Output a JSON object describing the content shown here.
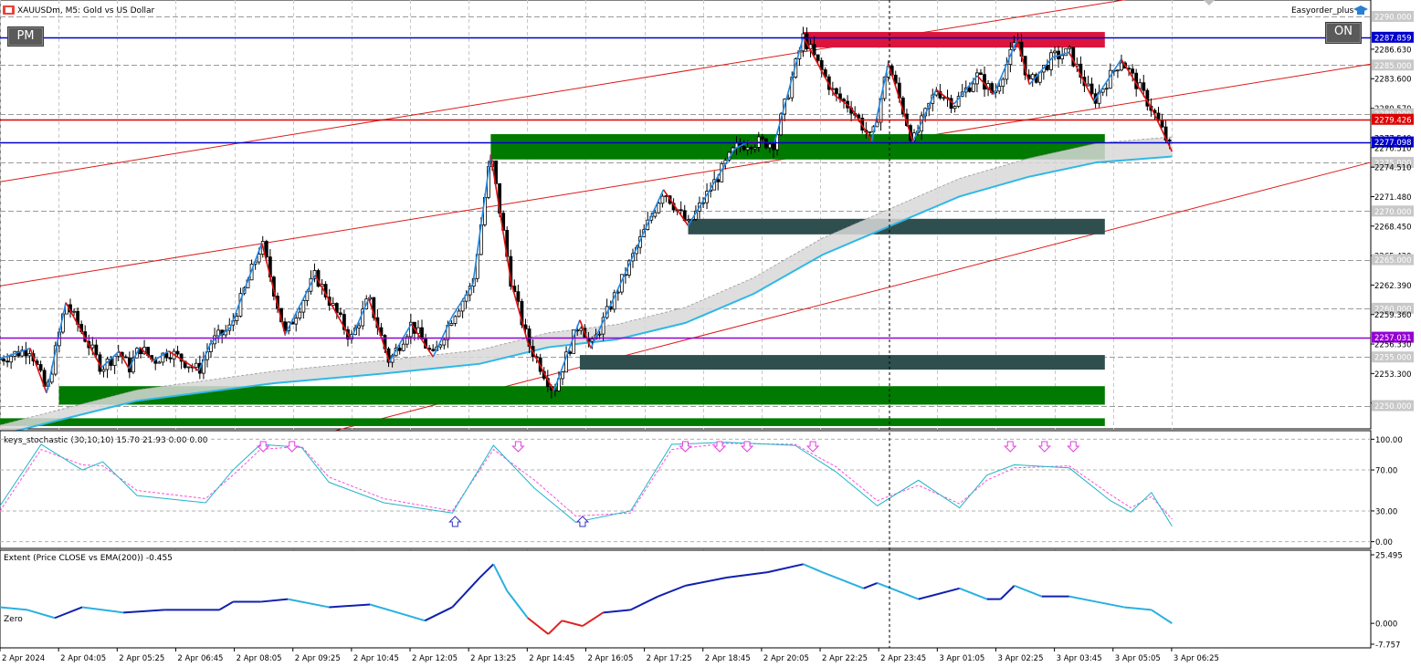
{
  "header": {
    "symbol": "XAUUSDm, M5:  Gold vs US Dollar",
    "expert": "Easyorder_plus"
  },
  "buttons": {
    "left": "PM",
    "right": "ON"
  },
  "colors": {
    "bull_leg": "#1e88e5",
    "bear_leg": "#e01010",
    "ema": "#2eb8e6",
    "zone_green": "#007a00",
    "zone_slate": "#2f4f4f",
    "zone_red": "#dc143c",
    "hline_blue": "#0000cc",
    "hline_red": "#dd0000",
    "hline_purple": "#9400d3"
  },
  "chart_data": [
    {
      "type": "candlestick",
      "title": "XAUUSDm, M5:  Gold vs US Dollar",
      "ylim": [
        2247.8,
        2291.5
      ],
      "price_labels": [
        "2290.000",
        "2287.859",
        "2286.630",
        "2285.000",
        "2283.600",
        "2280.570",
        "2280.000",
        "2279.426",
        "2277.540",
        "2277.098",
        "2276.510",
        "2275.000",
        "2274.510",
        "2271.480",
        "2270.000",
        "2268.450",
        "2265.420",
        "2265.000",
        "2262.390",
        "2260.000",
        "2259.360",
        "2257.031",
        "2256.330",
        "2255.000",
        "2253.300",
        "2250.270",
        "2250.000"
      ],
      "highlighted_levels": [
        {
          "value": 2287.859,
          "label": "2287.859",
          "color": "#0000cc"
        },
        {
          "value": 2279.426,
          "label": "2279.426",
          "color": "#dd0000"
        },
        {
          "value": 2277.098,
          "label": "2277.098",
          "color": "#0000cc"
        },
        {
          "value": 2257.031,
          "label": "2257.031",
          "color": "#9400d3"
        }
      ],
      "time_labels": [
        "2 Apr 2024",
        "2 Apr 04:05",
        "2 Apr 05:25",
        "2 Apr 06:45",
        "2 Apr 08:05",
        "2 Apr 09:25",
        "2 Apr 10:45",
        "2 Apr 12:05",
        "2 Apr 13:25",
        "2 Apr 14:45",
        "2 Apr 16:05",
        "2 Apr 17:25",
        "2 Apr 18:45",
        "2 Apr 20:05",
        "2 Apr 22:25",
        "2 Apr 23:45",
        "3 Apr 01:05",
        "3 Apr 02:25",
        "3 Apr 03:45",
        "3 Apr 05:05",
        "3 Apr 06:25"
      ],
      "zigzag": [
        [
          0.0,
          2254.8
        ],
        [
          2.2,
          2255.9
        ],
        [
          3.4,
          2251.3
        ],
        [
          4.8,
          2260.6
        ],
        [
          7.4,
          2253.9
        ],
        [
          8.7,
          2255.6
        ],
        [
          9.4,
          2253.8
        ],
        [
          10.2,
          2256.0
        ],
        [
          11.2,
          2254.6
        ],
        [
          12.3,
          2255.6
        ],
        [
          14.5,
          2253.6
        ],
        [
          15.4,
          2256.5
        ],
        [
          16.8,
          2258.0
        ],
        [
          19.1,
          2266.7
        ],
        [
          20.8,
          2257.3
        ],
        [
          23.0,
          2263.4
        ],
        [
          25.6,
          2256.8
        ],
        [
          26.9,
          2261.0
        ],
        [
          28.4,
          2254.5
        ],
        [
          30.0,
          2258.4
        ],
        [
          31.6,
          2255.0
        ],
        [
          33.0,
          2259.2
        ],
        [
          34.5,
          2262.5
        ],
        [
          35.8,
          2275.8
        ],
        [
          37.3,
          2262.6
        ],
        [
          38.5,
          2256.5
        ],
        [
          40.4,
          2251.5
        ],
        [
          42.3,
          2258.8
        ],
        [
          43.1,
          2255.9
        ],
        [
          48.4,
          2272.2
        ],
        [
          50.2,
          2268.5
        ],
        [
          53.6,
          2276.4
        ],
        [
          54.6,
          2277.1
        ],
        [
          56.5,
          2277.0
        ],
        [
          58.6,
          2287.9
        ],
        [
          60.9,
          2281.9
        ],
        [
          62.1,
          2280.6
        ],
        [
          63.6,
          2277.2
        ],
        [
          64.8,
          2285.2
        ],
        [
          66.6,
          2277.1
        ],
        [
          68.3,
          2282.5
        ],
        [
          69.6,
          2281.0
        ],
        [
          71.3,
          2283.9
        ],
        [
          72.5,
          2282.0
        ],
        [
          74.2,
          2287.6
        ],
        [
          75.1,
          2283.0
        ],
        [
          76.8,
          2285.8
        ],
        [
          78.0,
          2286.3
        ],
        [
          79.8,
          2281.3
        ],
        [
          81.8,
          2285.6
        ],
        [
          84.0,
          2280.6
        ],
        [
          85.5,
          2276.1
        ]
      ],
      "zones": [
        {
          "from": 35.8,
          "to": 80.6,
          "low": 2275.3,
          "high": 2277.9,
          "color": "green"
        },
        {
          "from": 58.6,
          "to": 80.6,
          "low": 2286.8,
          "high": 2288.4,
          "color": "red"
        },
        {
          "from": 50.2,
          "to": 80.6,
          "low": 2267.6,
          "high": 2269.2,
          "color": "slate"
        },
        {
          "from": 42.3,
          "to": 80.6,
          "low": 2253.7,
          "high": 2255.2,
          "color": "slate"
        },
        {
          "from": 4.3,
          "to": 80.6,
          "low": 2250.1,
          "high": 2252.0,
          "color": "green"
        },
        {
          "from": 0.0,
          "to": 80.6,
          "low": 2247.9,
          "high": 2248.7,
          "color": "green"
        }
      ],
      "ema_200": [
        [
          0,
          2247.0
        ],
        [
          10,
          2250.5
        ],
        [
          20,
          2252.3
        ],
        [
          28,
          2253.3
        ],
        [
          35,
          2254.3
        ],
        [
          40,
          2256.0
        ],
        [
          45,
          2256.8
        ],
        [
          50,
          2258.5
        ],
        [
          55,
          2261.5
        ],
        [
          60,
          2265.5
        ],
        [
          65,
          2268.5
        ],
        [
          70,
          2271.5
        ],
        [
          75,
          2273.5
        ],
        [
          80,
          2275.0
        ],
        [
          85.5,
          2275.6
        ]
      ],
      "channel": [
        {
          "name": "upper",
          "from": [
            0,
            2273.0
          ],
          "to": [
            100,
            2295.8
          ]
        },
        {
          "name": "middle",
          "from": [
            0,
            2262.3
          ],
          "to": [
            100,
            2285.1
          ]
        },
        {
          "name": "lower",
          "from": [
            0,
            2238.5
          ],
          "to": [
            100,
            2275.0
          ]
        }
      ]
    },
    {
      "type": "line",
      "title": "keys_stochastic (30,10,10) 15.70 21.93 0.00 0.00",
      "ylim": [
        -3,
        103
      ],
      "yticks": [
        "100.00",
        "70.00",
        "30.00",
        "0.00"
      ],
      "series": [
        {
          "values": [
            [
              0,
              35
            ],
            [
              3,
              95
            ],
            [
              6,
              70
            ],
            [
              7.5,
              78
            ],
            [
              10,
              45
            ],
            [
              15,
              38
            ],
            [
              17,
              70
            ],
            [
              19,
              95
            ],
            [
              22,
              92
            ],
            [
              24,
              58
            ],
            [
              28,
              38
            ],
            [
              33,
              28
            ],
            [
              36,
              94
            ],
            [
              39,
              52
            ],
            [
              42,
              19
            ],
            [
              46,
              30
            ],
            [
              49,
              95
            ],
            [
              53,
              97
            ],
            [
              58,
              94
            ],
            [
              61,
              68
            ],
            [
              64,
              35
            ],
            [
              67,
              60
            ],
            [
              70,
              33
            ],
            [
              72,
              65
            ],
            [
              74,
              75
            ],
            [
              78,
              72
            ],
            [
              81,
              40
            ],
            [
              82.5,
              29
            ],
            [
              84,
              48
            ],
            [
              85.5,
              15
            ]
          ]
        },
        {
          "values": [
            [
              0,
              30
            ],
            [
              3,
              90
            ],
            [
              6,
              75
            ],
            [
              7.5,
              74
            ],
            [
              10,
              50
            ],
            [
              15,
              42
            ],
            [
              17,
              65
            ],
            [
              19,
              90
            ],
            [
              22,
              93
            ],
            [
              24,
              63
            ],
            [
              28,
              42
            ],
            [
              33,
              30
            ],
            [
              36,
              90
            ],
            [
              39,
              60
            ],
            [
              42,
              25
            ],
            [
              46,
              28
            ],
            [
              49,
              90
            ],
            [
              53,
              96
            ],
            [
              58,
              95
            ],
            [
              61,
              73
            ],
            [
              64,
              40
            ],
            [
              67,
              55
            ],
            [
              70,
              37
            ],
            [
              72,
              60
            ],
            [
              74,
              72
            ],
            [
              78,
              74
            ],
            [
              81,
              46
            ],
            [
              82.5,
              33
            ],
            [
              84,
              44
            ],
            [
              85.5,
              22
            ]
          ]
        }
      ],
      "arrows_down": [
        19.2,
        21.3,
        37.8,
        50.0,
        52.5,
        54.5,
        59.3,
        73.7,
        76.2,
        78.3
      ],
      "arrows_up": [
        33.2,
        42.5
      ]
    },
    {
      "type": "line",
      "title": "Extent (Price CLOSE vs EMA(200)) -0.455",
      "ylim": [
        -7.757,
        25.495
      ],
      "yticks": [
        "25.495",
        "0.000",
        "-7.757"
      ],
      "zero_label": "Zero",
      "values": [
        [
          0,
          6
        ],
        [
          2,
          5
        ],
        [
          4,
          2
        ],
        [
          6,
          6
        ],
        [
          9,
          4
        ],
        [
          12,
          5
        ],
        [
          16,
          5
        ],
        [
          17,
          8
        ],
        [
          19,
          8
        ],
        [
          21,
          9
        ],
        [
          24,
          6
        ],
        [
          27,
          7
        ],
        [
          29,
          4
        ],
        [
          31,
          1
        ],
        [
          33,
          6
        ],
        [
          35,
          17
        ],
        [
          36,
          22
        ],
        [
          37,
          12
        ],
        [
          38.5,
          2
        ],
        [
          40,
          -4
        ],
        [
          41,
          1
        ],
        [
          42.5,
          -1
        ],
        [
          44,
          4
        ],
        [
          46,
          5
        ],
        [
          48,
          10
        ],
        [
          50,
          14
        ],
        [
          53,
          17
        ],
        [
          56,
          19
        ],
        [
          58.6,
          22
        ],
        [
          60,
          19
        ],
        [
          63,
          13
        ],
        [
          64,
          15
        ],
        [
          66,
          11
        ],
        [
          67,
          9
        ],
        [
          70,
          13
        ],
        [
          72,
          9
        ],
        [
          73,
          9
        ],
        [
          74,
          14
        ],
        [
          76,
          10
        ],
        [
          78,
          10
        ],
        [
          80,
          8
        ],
        [
          82,
          6
        ],
        [
          84,
          5
        ],
        [
          85.5,
          0
        ]
      ]
    }
  ]
}
